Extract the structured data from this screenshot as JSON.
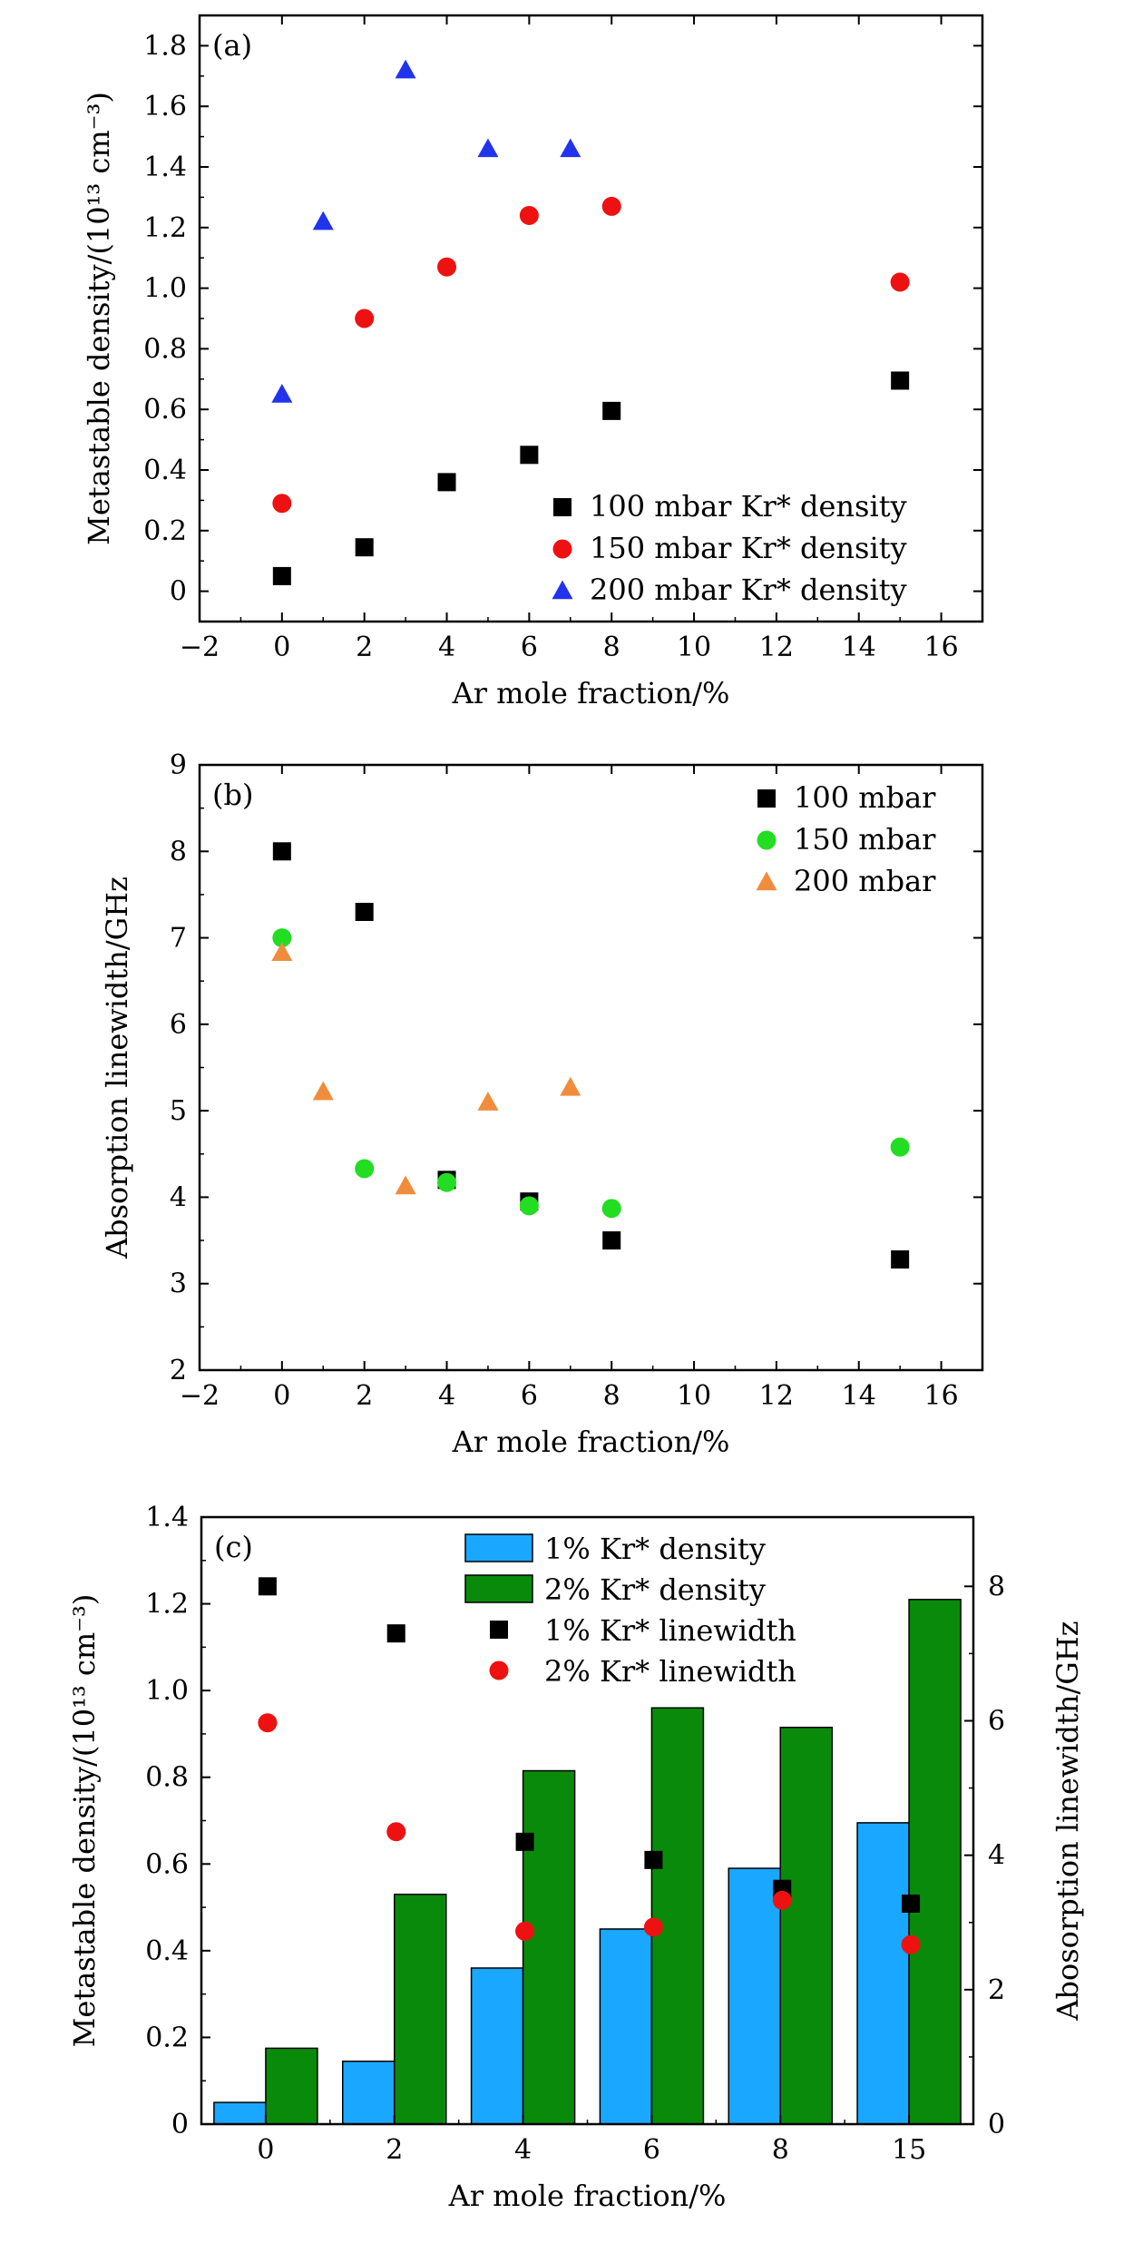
{
  "chart_data": [
    {
      "type": "scatter",
      "panel_label": "(a)",
      "xlabel": "Ar mole fraction/%",
      "ylabel": "Metastable density/(10¹³ cm⁻³)",
      "xlim": [
        -2,
        17
      ],
      "ylim": [
        -0.1,
        1.9
      ],
      "xticks": [
        -2,
        0,
        2,
        4,
        6,
        8,
        10,
        12,
        14,
        16
      ],
      "xtick_labels": [
        "−2",
        "0",
        "2",
        "4",
        "6",
        "8",
        "10",
        "12",
        "14",
        "16"
      ],
      "yticks": [
        0,
        0.2,
        0.4,
        0.6,
        0.8,
        1.0,
        1.2,
        1.4,
        1.6,
        1.8
      ],
      "ytick_labels": [
        "0",
        "0.2",
        "0.4",
        "0.6",
        "0.8",
        "1.0",
        "1.2",
        "1.4",
        "1.6",
        "1.8"
      ],
      "legend_position": "bottom-right",
      "series": [
        {
          "name": "100 mbar Kr* density",
          "marker": "square",
          "color": "#000000",
          "x": [
            0,
            2,
            4,
            6,
            8,
            15
          ],
          "y": [
            0.05,
            0.145,
            0.36,
            0.45,
            0.595,
            0.695
          ]
        },
        {
          "name": "150 mbar Kr* density",
          "marker": "circle",
          "color": "#ee1111",
          "x": [
            0,
            2,
            4,
            6,
            8,
            15
          ],
          "y": [
            0.29,
            0.9,
            1.07,
            1.24,
            1.27,
            1.02
          ]
        },
        {
          "name": "200 mbar Kr* density",
          "marker": "triangle",
          "color": "#2233ee",
          "x": [
            0,
            1,
            3,
            5,
            7
          ],
          "y": [
            0.65,
            1.22,
            1.72,
            1.46,
            1.46
          ]
        }
      ]
    },
    {
      "type": "scatter",
      "panel_label": "(b)",
      "xlabel": "Ar mole fraction/%",
      "ylabel": "Absorption linewidth/GHz",
      "xlim": [
        -2,
        17
      ],
      "ylim": [
        2,
        9
      ],
      "xticks": [
        -2,
        0,
        2,
        4,
        6,
        8,
        10,
        12,
        14,
        16
      ],
      "xtick_labels": [
        "−2",
        "0",
        "2",
        "4",
        "6",
        "8",
        "10",
        "12",
        "14",
        "16"
      ],
      "yticks": [
        2,
        3,
        4,
        5,
        6,
        7,
        8,
        9
      ],
      "ytick_labels": [
        "2",
        "3",
        "4",
        "5",
        "6",
        "7",
        "8",
        "9"
      ],
      "legend_position": "top-right",
      "series": [
        {
          "name": "100 mbar",
          "marker": "square",
          "color": "#000000",
          "x": [
            0,
            2,
            4,
            6,
            8,
            15
          ],
          "y": [
            8.0,
            7.3,
            4.2,
            3.95,
            3.5,
            3.28
          ]
        },
        {
          "name": "150 mbar",
          "marker": "circle",
          "color": "#22dd22",
          "x": [
            0,
            2,
            4,
            6,
            8,
            15
          ],
          "y": [
            7.0,
            4.33,
            4.17,
            3.9,
            3.87,
            4.58
          ]
        },
        {
          "name": "200 mbar",
          "marker": "triangle",
          "color": "#f08c3c",
          "x": [
            0,
            1,
            3,
            5,
            7
          ],
          "y": [
            6.83,
            5.22,
            4.13,
            5.1,
            5.27
          ]
        }
      ]
    },
    {
      "type": "bar",
      "panel_label": "(c)",
      "categories": [
        "0",
        "2",
        "4",
        "6",
        "8",
        "15"
      ],
      "xlabel": "Ar mole fraction/%",
      "ylabel": "Metastable density/(10¹³ cm⁻³)",
      "y2label": "Abosorption linewidth/GHz",
      "ylim": [
        0,
        1.4
      ],
      "y2lim": [
        0,
        9.03
      ],
      "yticks": [
        0,
        0.2,
        0.4,
        0.6,
        0.8,
        1.0,
        1.2,
        1.4
      ],
      "ytick_labels": [
        "0",
        "0.2",
        "0.4",
        "0.6",
        "0.8",
        "1.0",
        "1.2",
        "1.4"
      ],
      "y2ticks": [
        0,
        2,
        4,
        6,
        8
      ],
      "y2tick_labels": [
        "0",
        "2",
        "4",
        "6",
        "8"
      ],
      "legend_position": "top-center",
      "series": [
        {
          "name": "1% Kr* density",
          "kind": "bar",
          "axis": "left",
          "color": "#1aa7ff",
          "values": [
            0.05,
            0.145,
            0.36,
            0.45,
            0.59,
            0.695
          ]
        },
        {
          "name": "2% Kr* density",
          "kind": "bar",
          "axis": "left",
          "color": "#0a8a0a",
          "values": [
            0.175,
            0.53,
            0.815,
            0.96,
            0.915,
            1.21
          ]
        },
        {
          "name": "1% Kr* linewidth",
          "kind": "scatter",
          "marker": "square",
          "axis": "right",
          "color": "#000000",
          "values": [
            8.0,
            7.3,
            4.2,
            3.93,
            3.5,
            3.28
          ]
        },
        {
          "name": "2% Kr* linewidth",
          "kind": "scatter",
          "marker": "circle",
          "axis": "right",
          "color": "#ee1111",
          "values": [
            5.97,
            4.35,
            2.87,
            2.93,
            3.33,
            2.67
          ]
        }
      ]
    }
  ]
}
